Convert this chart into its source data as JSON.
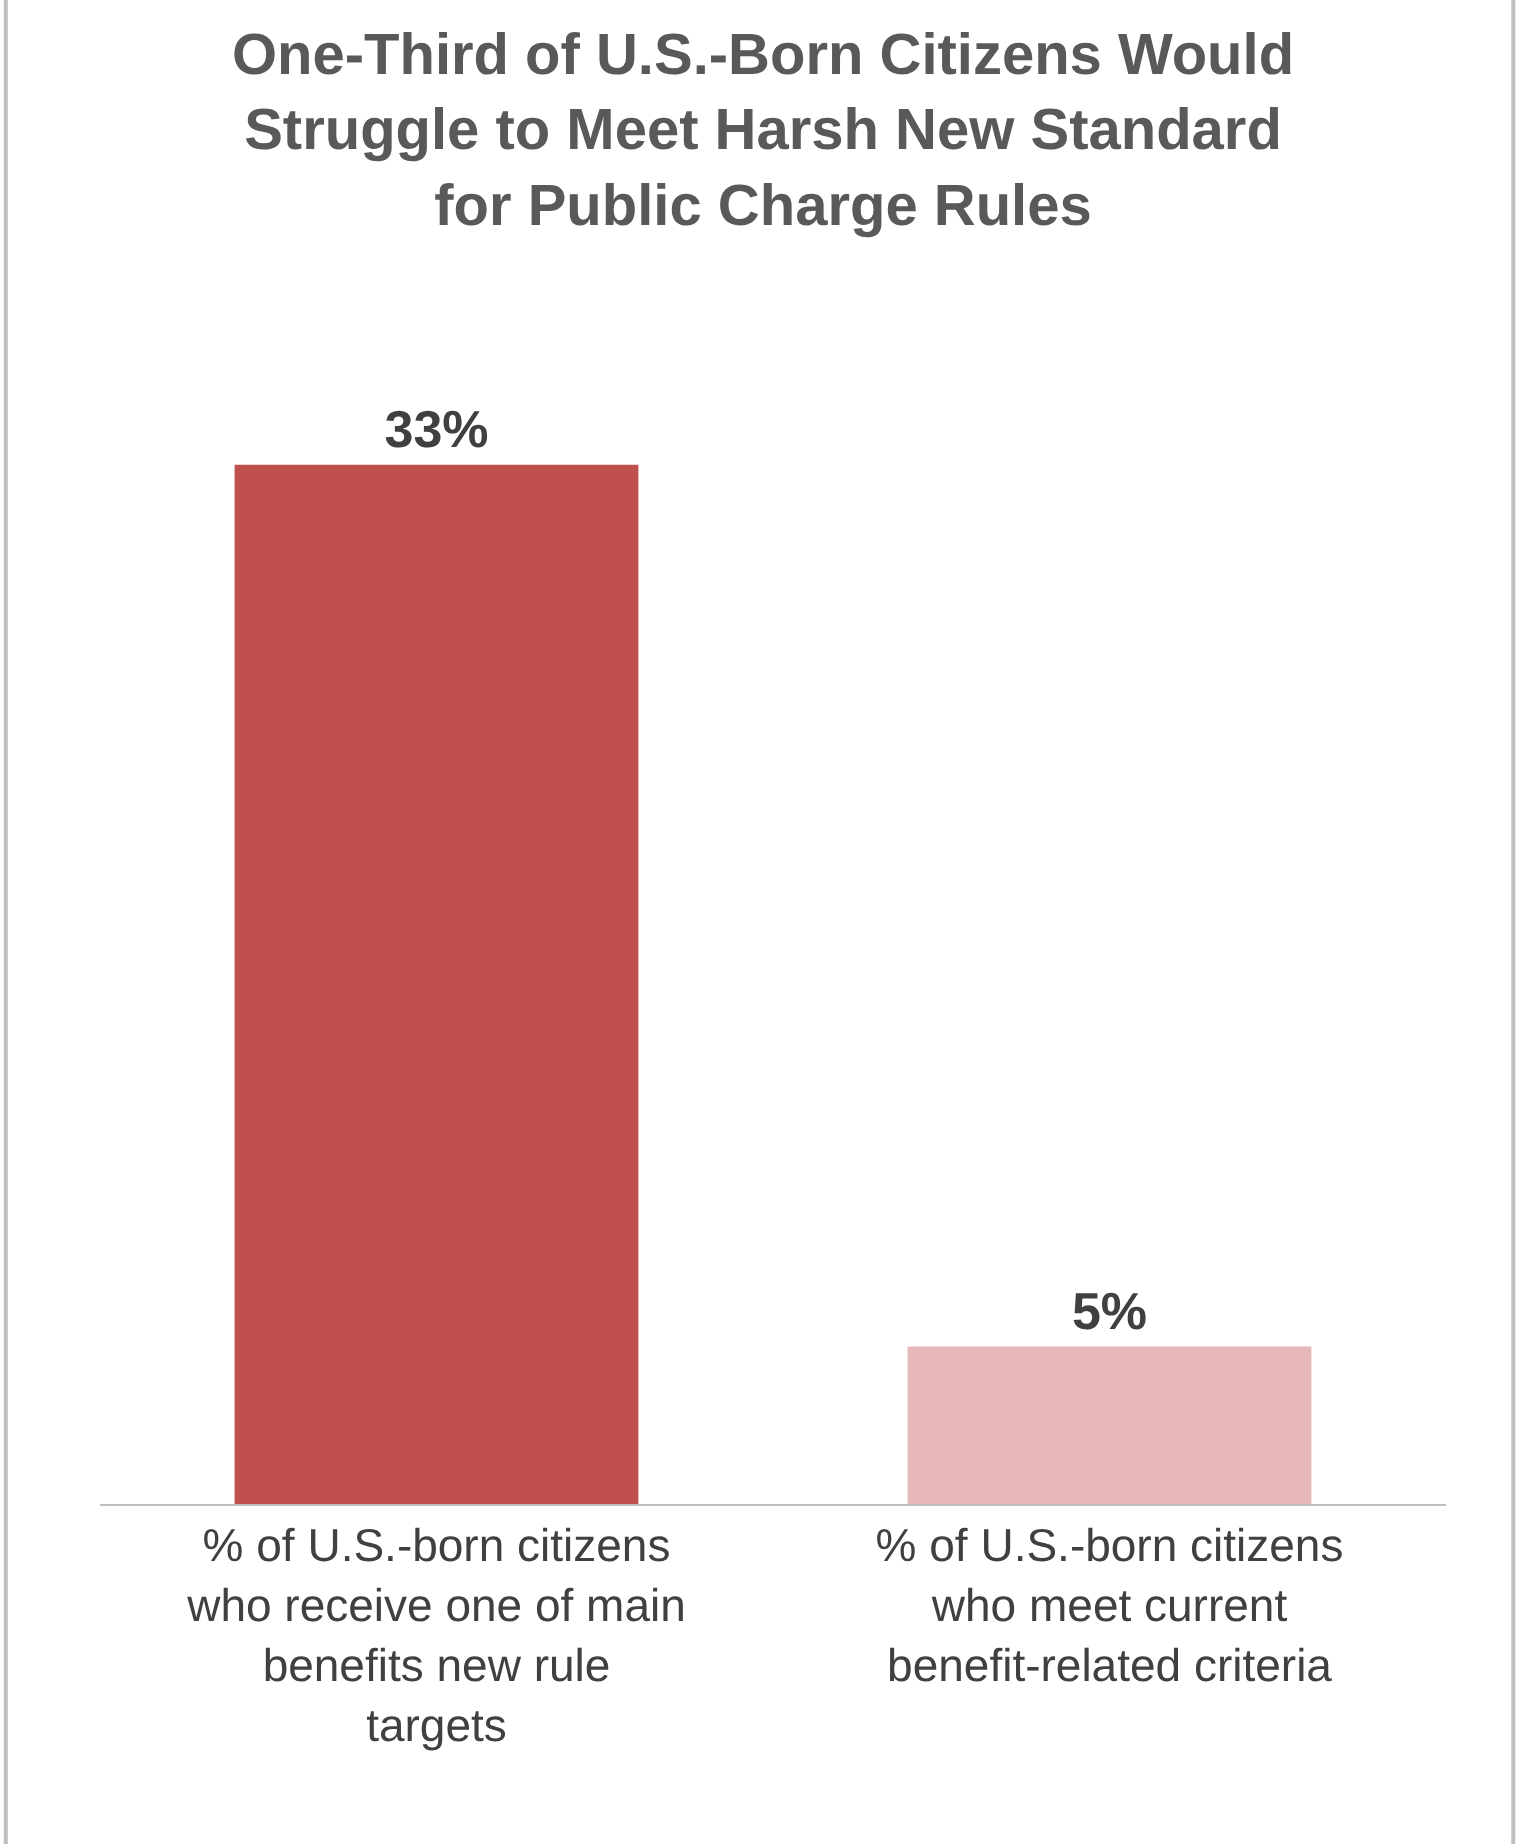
{
  "chart_data": {
    "type": "bar",
    "title": "One-Third of U.S.-Born Citizens Would Struggle to Meet Harsh New Standard for Public Charge Rules",
    "categories": [
      "% of U.S.-born citizens who receive one of main benefits new rule targets",
      "% of U.S.-born citizens who meet current benefit-related criteria"
    ],
    "values": [
      33,
      5
    ],
    "colors": [
      "#c0504d",
      "#e6b9b8"
    ],
    "value_labels": [
      "33%",
      "5%"
    ]
  }
}
